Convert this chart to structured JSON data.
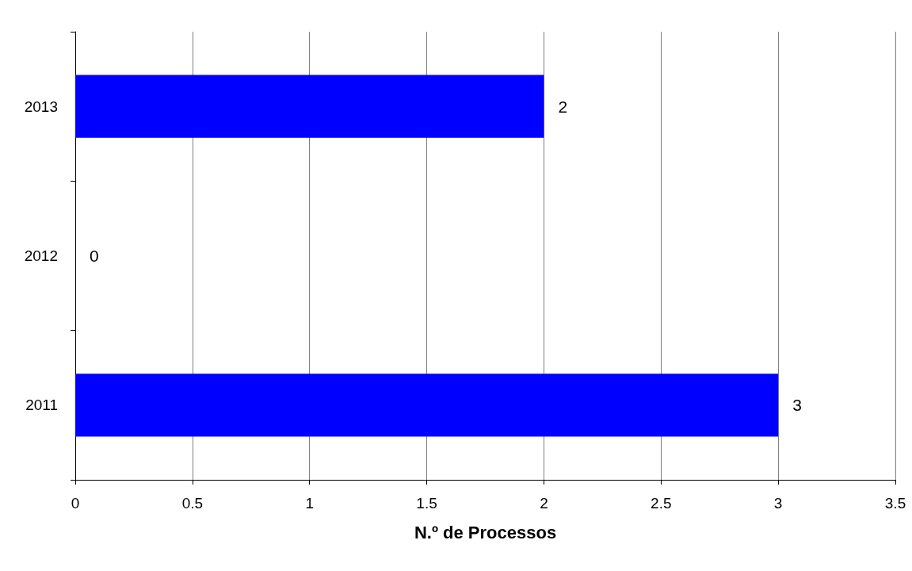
{
  "chart_data": {
    "type": "bar",
    "orientation": "horizontal",
    "categories": [
      "2013",
      "2012",
      "2011"
    ],
    "values": [
      2,
      0,
      3
    ],
    "color": "#0000ff",
    "xlim": [
      0,
      3.5
    ],
    "xticks": [
      0,
      0.5,
      1,
      1.5,
      2,
      2.5,
      3,
      3.5
    ],
    "xlabel": "N.º de Processos",
    "grid": "x",
    "data_labels": true
  }
}
